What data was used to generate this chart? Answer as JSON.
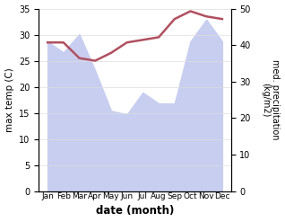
{
  "months": [
    "Jan",
    "Feb",
    "Mar",
    "Apr",
    "May",
    "Jun",
    "Jul",
    "Aug",
    "Sep",
    "Oct",
    "Nov",
    "Dec"
  ],
  "month_indices": [
    0,
    1,
    2,
    3,
    4,
    5,
    6,
    7,
    8,
    9,
    10,
    11
  ],
  "temperature": [
    28.5,
    28.5,
    25.5,
    25.0,
    26.5,
    28.5,
    29.0,
    29.5,
    33.0,
    34.5,
    33.5,
    33.0
  ],
  "precipitation": [
    41.0,
    38.0,
    43.0,
    33.0,
    22.0,
    21.0,
    27.0,
    24.0,
    24.0,
    41.0,
    47.0,
    41.0
  ],
  "temp_color": "#b05060",
  "precip_fill_color": "#c8cef0",
  "xlabel": "date (month)",
  "ylabel_left": "max temp (C)",
  "ylabel_right": "med. precipitation\n(kg/m2)",
  "ylim_left": [
    0,
    35
  ],
  "ylim_right": [
    0,
    50
  ],
  "yticks_left": [
    0,
    5,
    10,
    15,
    20,
    25,
    30,
    35
  ],
  "yticks_right": [
    0,
    10,
    20,
    30,
    40,
    50
  ],
  "figsize": [
    3.18,
    2.47
  ],
  "dpi": 100,
  "background_color": "#ffffff",
  "line_width": 1.8
}
